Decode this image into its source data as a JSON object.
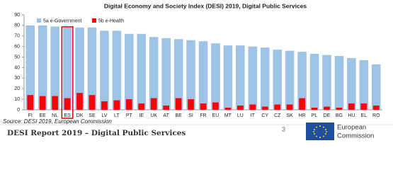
{
  "chart_data": {
    "type": "bar",
    "title": "Digital Economy and Society Index (DESI) 2019, Digital Public Services",
    "categories": [
      "FI",
      "EE",
      "NL",
      "ES",
      "DK",
      "SE",
      "LV",
      "LT",
      "PT",
      "IE",
      "UK",
      "AT",
      "BE",
      "SI",
      "FR",
      "EU",
      "MT",
      "LU",
      "IT",
      "CY",
      "CZ",
      "SK",
      "HR",
      "PL",
      "DE",
      "BG",
      "HU",
      "EL",
      "RO"
    ],
    "series": [
      {
        "name": "5a e-Government",
        "color": "#9dc3e6",
        "values": [
          80,
          80,
          79,
          78,
          78,
          78,
          75,
          75,
          72,
          72,
          69,
          68,
          67,
          66,
          65,
          63,
          61,
          61,
          60,
          59,
          57,
          56,
          55,
          53,
          52,
          51,
          49,
          47,
          43
        ]
      },
      {
        "name": "5b e-Health",
        "color": "#ff0000",
        "values": [
          14,
          13,
          13,
          11,
          16,
          14,
          8,
          9,
          10,
          6,
          11,
          4,
          11,
          10,
          6,
          7,
          2,
          4,
          5,
          3,
          5,
          5,
          11,
          2,
          3,
          2,
          6,
          6,
          4
        ]
      }
    ],
    "ylim": [
      0,
      90
    ],
    "yticks": [
      0,
      10,
      20,
      30,
      40,
      50,
      60,
      70,
      80,
      90
    ],
    "grid": false,
    "source": "Source: DESI 2019, European Commission"
  },
  "footer": {
    "report": "DESI Report 2019 – Digital Public Services",
    "page": 3,
    "org": [
      "European",
      "Commission"
    ]
  }
}
